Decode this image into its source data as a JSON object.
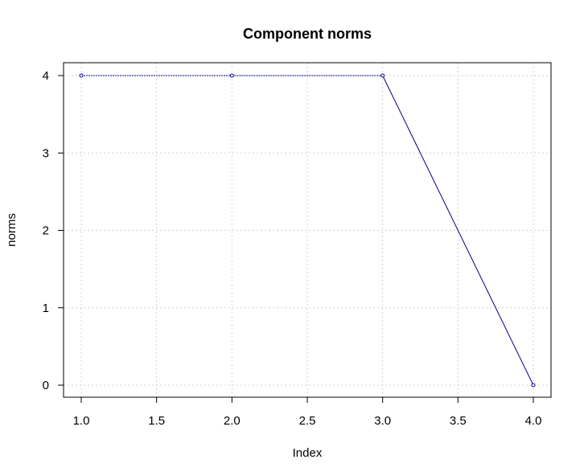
{
  "chart_data": {
    "type": "line",
    "title": "Component norms",
    "xlabel": "Index",
    "ylabel": "norms",
    "xlim": [
      1.0,
      4.0
    ],
    "ylim": [
      0,
      4
    ],
    "x_ticks": [
      1.0,
      1.5,
      2.0,
      2.5,
      3.0,
      3.5,
      4.0
    ],
    "x_tick_labels": [
      "1.0",
      "1.5",
      "2.0",
      "2.5",
      "3.0",
      "3.5",
      "4.0"
    ],
    "y_ticks": [
      0,
      1,
      2,
      3,
      4
    ],
    "y_tick_labels": [
      "0",
      "1",
      "2",
      "3",
      "4"
    ],
    "grid": true,
    "series": [
      {
        "x": [
          1,
          2,
          3,
          4
        ],
        "values": [
          4,
          4,
          4,
          0
        ],
        "color": "#00008b",
        "marker": "open-circle"
      }
    ]
  }
}
